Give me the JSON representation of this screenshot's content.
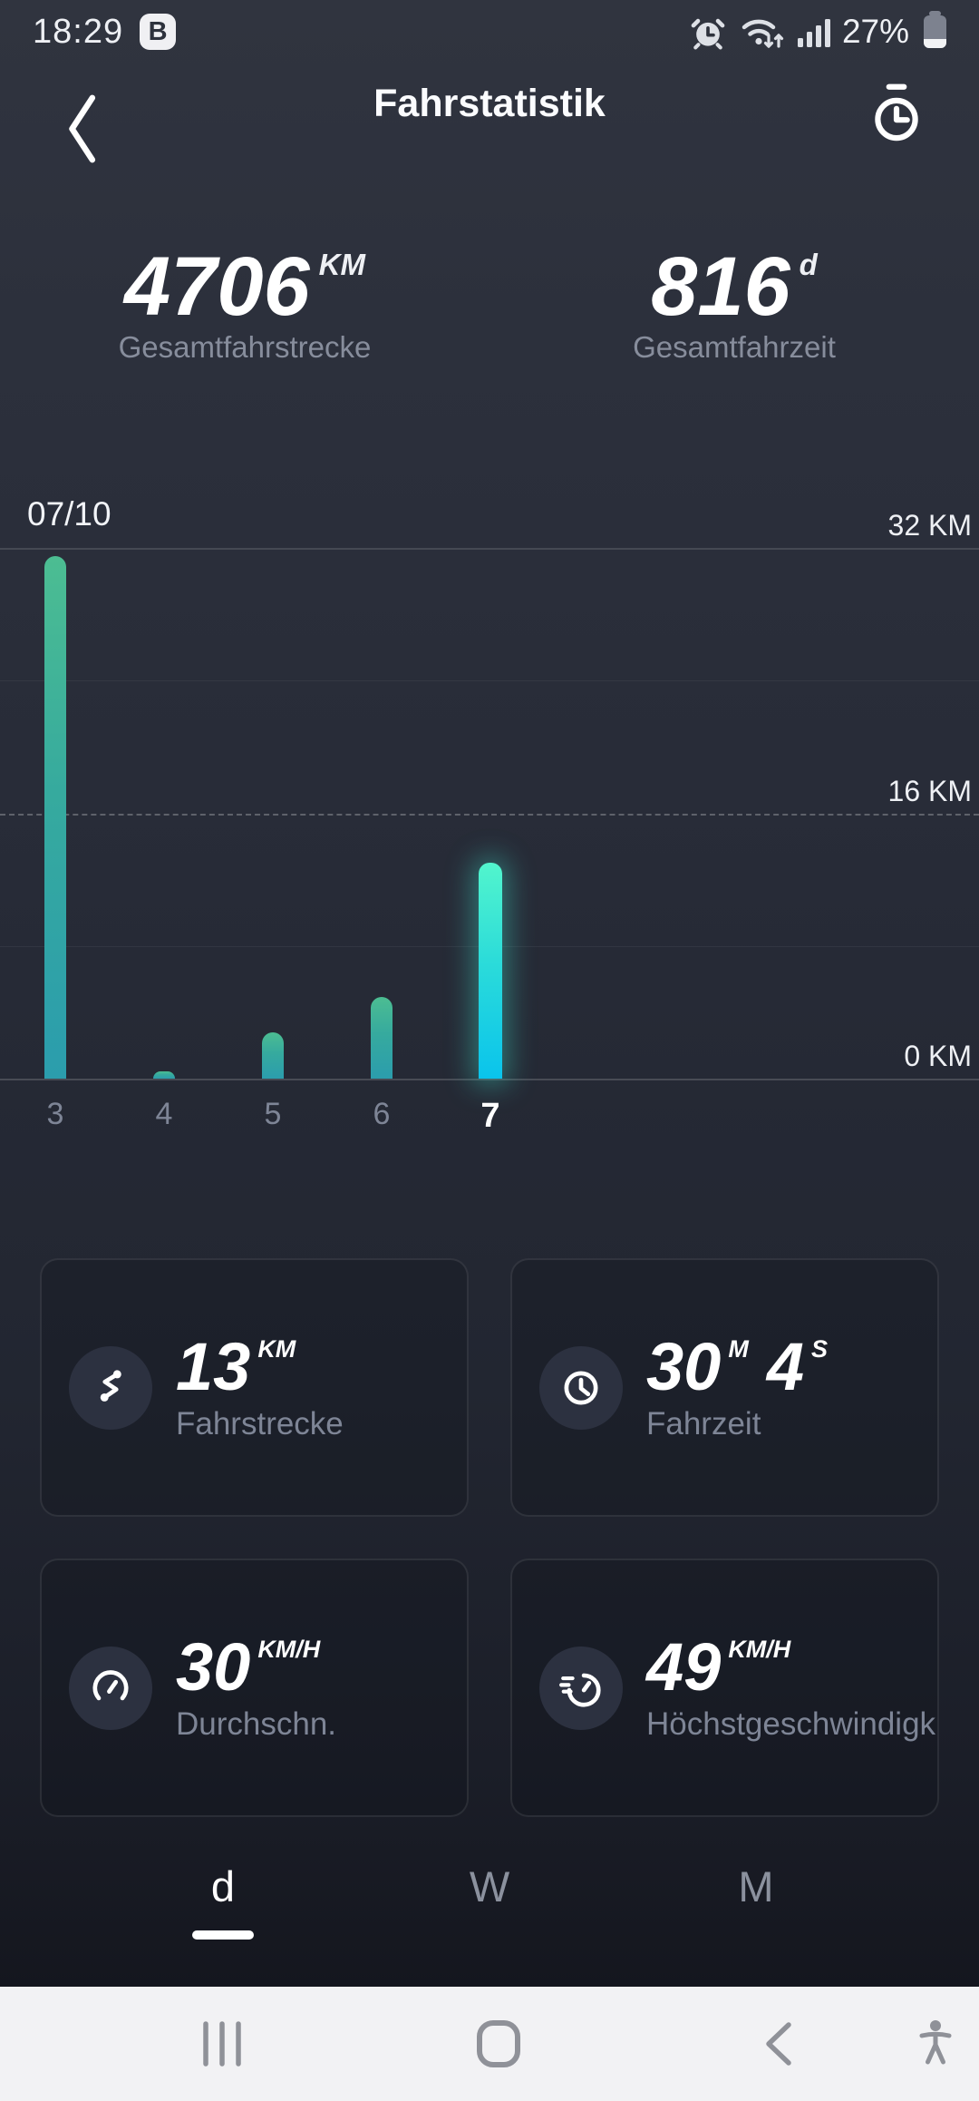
{
  "status_bar": {
    "time": "18:29",
    "badge": "B",
    "icons": [
      "alarm-icon",
      "wifi-traffic-icon",
      "signal-icon"
    ],
    "battery_percent": "27%"
  },
  "header": {
    "title": "Fahrstatistik",
    "back_icon": "back-chevron-icon",
    "right_icon": "stopwatch-history-icon"
  },
  "summary": [
    {
      "value": "4706",
      "unit": "KM",
      "label": "Gesamtfahrstrecke"
    },
    {
      "value": "816",
      "unit": "d",
      "label": "Gesamtfahrzeit"
    }
  ],
  "chart_data": {
    "type": "bar",
    "period_label": "07/10",
    "categories": [
      "3",
      "4",
      "5",
      "6",
      "7"
    ],
    "values": [
      31.5,
      0.3,
      2.8,
      4.9,
      13
    ],
    "selected_index": 4,
    "unit": "KM",
    "ylim": [
      0,
      32
    ],
    "y_ticks": [
      {
        "label": "32 KM",
        "value": 32
      },
      {
        "label": "16 KM",
        "value": 16
      },
      {
        "label": "0 KM",
        "value": 0
      }
    ],
    "gridlines": "horizontal, 8 KM apart, 16 KM line dashed",
    "legend": "none",
    "colors": {
      "bar_top": "#4cbd92",
      "bar_bottom": "#2b9dad",
      "selected_top": "#52f5cd",
      "selected_bottom": "#0ac4ec",
      "selected_glow": "#3eeed8"
    }
  },
  "cards": [
    {
      "icon": "route-icon",
      "value_parts": [
        {
          "v": "13",
          "u": "KM"
        }
      ],
      "label": "Fahrstrecke"
    },
    {
      "icon": "clock-icon",
      "value_parts": [
        {
          "v": "30",
          "u": "M"
        },
        {
          "v": "4",
          "u": "S"
        }
      ],
      "label": "Fahrzeit"
    },
    {
      "icon": "gauge-icon",
      "value_parts": [
        {
          "v": "30",
          "u": "KM/H"
        }
      ],
      "label": "Durchschn."
    },
    {
      "icon": "timer-speed-icon",
      "value_parts": [
        {
          "v": "49",
          "u": "KM/H"
        }
      ],
      "label": "Höchstgeschwindigk"
    }
  ],
  "tabs": [
    {
      "label": "d",
      "active": true
    },
    {
      "label": "W",
      "active": false
    },
    {
      "label": "M",
      "active": false
    }
  ],
  "nav_bar": {
    "icons": [
      "recents-icon",
      "home-icon",
      "back-icon",
      "accessibility-icon"
    ]
  }
}
